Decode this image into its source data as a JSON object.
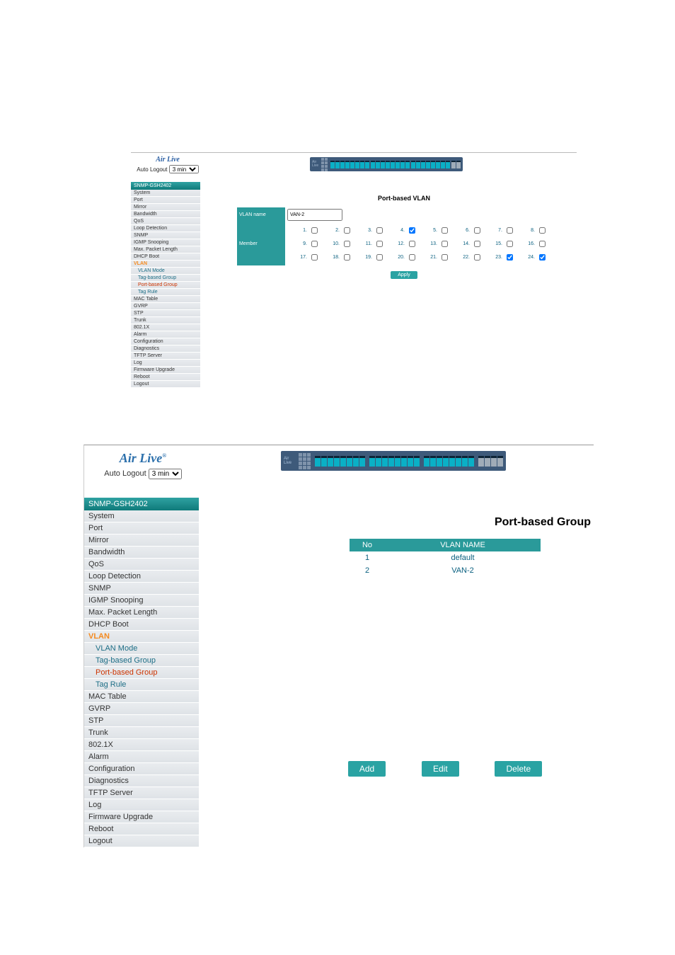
{
  "brand": "Air Live",
  "autologout_label": "Auto Logout",
  "autologout_value": "3 min",
  "device_model": "SNMP-GSH2402",
  "sidebar": [
    {
      "label": "System",
      "sub": false
    },
    {
      "label": "Port",
      "sub": false
    },
    {
      "label": "Mirror",
      "sub": false
    },
    {
      "label": "Bandwidth",
      "sub": false
    },
    {
      "label": "QoS",
      "sub": false
    },
    {
      "label": "Loop Detection",
      "sub": false
    },
    {
      "label": "SNMP",
      "sub": false
    },
    {
      "label": "IGMP Snooping",
      "sub": false
    },
    {
      "label": "Max. Packet Length",
      "sub": false
    },
    {
      "label": "DHCP Boot",
      "sub": false
    },
    {
      "label": "VLAN",
      "sub": false,
      "hot": true
    },
    {
      "label": "VLAN Mode",
      "sub": true
    },
    {
      "label": "Tag-based Group",
      "sub": true
    },
    {
      "label": "Port-based Group",
      "sub": true,
      "active": true
    },
    {
      "label": "Tag Rule",
      "sub": true
    },
    {
      "label": "MAC Table",
      "sub": false
    },
    {
      "label": "GVRP",
      "sub": false
    },
    {
      "label": "STP",
      "sub": false
    },
    {
      "label": "Trunk",
      "sub": false
    },
    {
      "label": "802.1X",
      "sub": false
    },
    {
      "label": "Alarm",
      "sub": false
    },
    {
      "label": "Configuration",
      "sub": false
    },
    {
      "label": "Diagnostics",
      "sub": false
    },
    {
      "label": "TFTP Server",
      "sub": false
    },
    {
      "label": "Log",
      "sub": false
    },
    {
      "label": "Firmware Upgrade",
      "sub": false
    },
    {
      "label": "Reboot",
      "sub": false
    },
    {
      "label": "Logout",
      "sub": false
    }
  ],
  "shot1": {
    "title": "Port-based VLAN",
    "vlan_name_label": "VLAN name",
    "vlan_name_value": "VAN-2",
    "member_label": "Member",
    "ports": [
      {
        "n": 1,
        "c": false
      },
      {
        "n": 2,
        "c": false
      },
      {
        "n": 3,
        "c": false
      },
      {
        "n": 4,
        "c": true
      },
      {
        "n": 5,
        "c": false
      },
      {
        "n": 6,
        "c": false
      },
      {
        "n": 7,
        "c": false
      },
      {
        "n": 8,
        "c": false
      },
      {
        "n": 9,
        "c": false
      },
      {
        "n": 10,
        "c": false
      },
      {
        "n": 11,
        "c": false
      },
      {
        "n": 12,
        "c": false
      },
      {
        "n": 13,
        "c": false
      },
      {
        "n": 14,
        "c": false
      },
      {
        "n": 15,
        "c": false
      },
      {
        "n": 16,
        "c": false
      },
      {
        "n": 17,
        "c": false
      },
      {
        "n": 18,
        "c": false
      },
      {
        "n": 19,
        "c": false
      },
      {
        "n": 20,
        "c": false
      },
      {
        "n": 21,
        "c": false
      },
      {
        "n": 22,
        "c": false
      },
      {
        "n": 23,
        "c": true
      },
      {
        "n": 24,
        "c": true
      }
    ],
    "apply": "Apply"
  },
  "shot2": {
    "title": "Port-based Group",
    "col_no": "No",
    "col_name": "VLAN NAME",
    "rows": [
      {
        "no": "1",
        "name": "default"
      },
      {
        "no": "2",
        "name": "VAN-2"
      }
    ],
    "btn_add": "Add",
    "btn_edit": "Edit",
    "btn_delete": "Delete"
  },
  "colors": {
    "teal": "#2a9a9a",
    "link": "#0a6080",
    "hot": "#f58a1f",
    "active": "#cc3300",
    "device_bg": "#3e5a7a",
    "port": "#0ab0c6"
  }
}
